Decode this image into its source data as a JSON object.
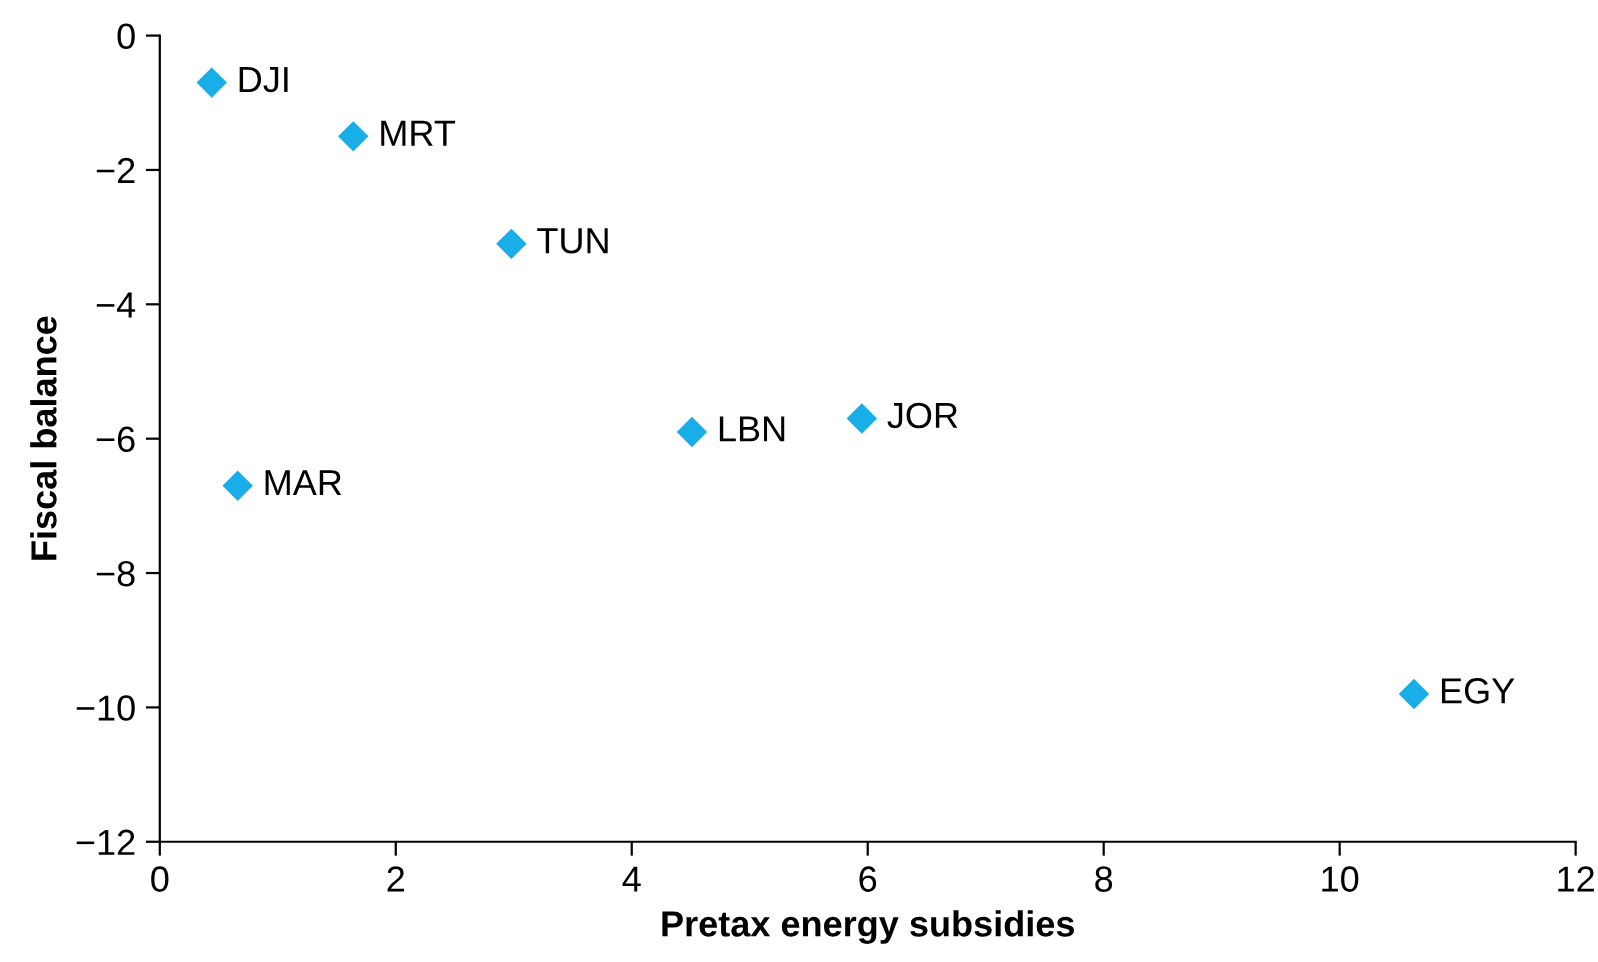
{
  "chart_data": {
    "type": "scatter",
    "xlabel": "Pretax energy subsidies",
    "ylabel": "Fiscal balance",
    "x": [
      0.44,
      1.64,
      2.98,
      4.51,
      5.95,
      0.66,
      10.63
    ],
    "values": [
      -0.7,
      -1.5,
      -3.1,
      -5.9,
      -5.7,
      -6.7,
      -9.8
    ],
    "color": "#1aaee8",
    "marker": "diamond",
    "grid": false,
    "legend": false,
    "xlim": [
      0,
      12
    ],
    "xticks": [
      0,
      2,
      4,
      6,
      8,
      10,
      12
    ],
    "ylim": [
      -12,
      0
    ],
    "yticks": [
      {
        "value": -12,
        "label": "−12"
      },
      {
        "value": -10,
        "label": "−10"
      },
      {
        "value": -8,
        "label": "−8"
      },
      {
        "value": -6,
        "label": "−6"
      },
      {
        "value": -4,
        "label": "−4"
      },
      {
        "value": -2,
        "label": "−2"
      },
      0
    ],
    "annotations": [
      {
        "text": "DJI",
        "x": 0.44,
        "y": -0.7
      },
      {
        "text": "MRT",
        "x": 1.64,
        "y": -1.5
      },
      {
        "text": "TUN",
        "x": 2.98,
        "y": -3.1
      },
      {
        "text": "LBN",
        "x": 4.51,
        "y": -5.9
      },
      {
        "text": "JOR",
        "x": 5.95,
        "y": -5.7
      },
      {
        "text": "MAR",
        "x": 0.66,
        "y": -6.7
      },
      {
        "text": "EGY",
        "x": 10.63,
        "y": -9.8
      }
    ]
  }
}
